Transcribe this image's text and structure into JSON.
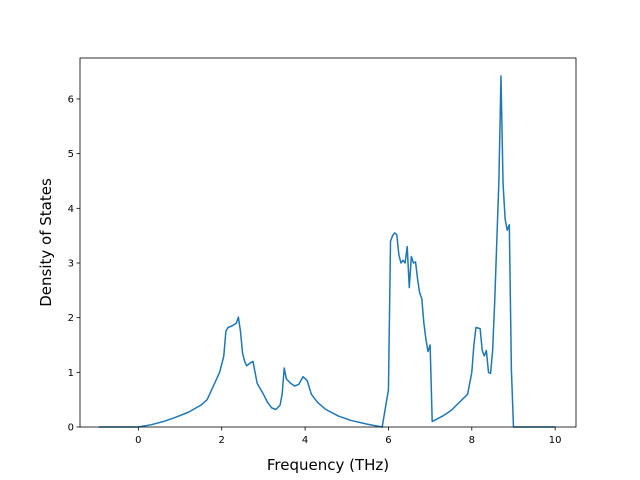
{
  "chart_data": {
    "type": "line",
    "title": "",
    "xlabel": "Frequency (THz)",
    "ylabel": "Density of States",
    "xlim": [
      -1.4,
      10.5
    ],
    "ylim": [
      0,
      6.75
    ],
    "xticks": [
      0,
      2,
      4,
      6,
      8,
      10
    ],
    "yticks": [
      0,
      1,
      2,
      3,
      4,
      5,
      6
    ],
    "grid": false,
    "line_color": "#1f77b4",
    "series": [
      {
        "name": "",
        "x": [
          -0.95,
          0.0,
          0.3,
          0.6,
          0.9,
          1.2,
          1.5,
          1.65,
          1.8,
          1.95,
          2.05,
          2.1,
          2.15,
          2.25,
          2.35,
          2.4,
          2.45,
          2.5,
          2.55,
          2.6,
          2.7,
          2.75,
          2.85,
          3.0,
          3.1,
          3.2,
          3.3,
          3.4,
          3.45,
          3.5,
          3.55,
          3.65,
          3.75,
          3.85,
          3.95,
          4.05,
          4.15,
          4.3,
          4.5,
          4.8,
          5.1,
          5.5,
          5.85,
          6.0,
          6.05,
          6.1,
          6.15,
          6.2,
          6.25,
          6.3,
          6.35,
          6.4,
          6.45,
          6.5,
          6.55,
          6.6,
          6.65,
          6.7,
          6.75,
          6.8,
          6.85,
          6.9,
          6.95,
          7.0,
          7.05,
          7.1,
          7.3,
          7.5,
          7.7,
          7.9,
          8.0,
          8.05,
          8.1,
          8.2,
          8.25,
          8.3,
          8.35,
          8.4,
          8.45,
          8.5,
          8.55,
          8.6,
          8.65,
          8.7,
          8.75,
          8.8,
          8.85,
          8.9,
          8.95,
          9.0,
          9.05,
          9.1,
          10.0
        ],
        "y": [
          0.0,
          0.0,
          0.04,
          0.1,
          0.18,
          0.27,
          0.4,
          0.5,
          0.75,
          1.0,
          1.3,
          1.75,
          1.82,
          1.85,
          1.9,
          2.01,
          1.75,
          1.35,
          1.2,
          1.12,
          1.18,
          1.2,
          0.8,
          0.6,
          0.45,
          0.35,
          0.32,
          0.4,
          0.6,
          1.08,
          0.88,
          0.8,
          0.75,
          0.78,
          0.92,
          0.85,
          0.6,
          0.45,
          0.32,
          0.2,
          0.12,
          0.05,
          0.0,
          0.68,
          3.4,
          3.5,
          3.55,
          3.52,
          3.15,
          3.0,
          3.05,
          3.0,
          3.3,
          2.55,
          3.12,
          3.0,
          3.02,
          2.7,
          2.45,
          2.35,
          1.9,
          1.6,
          1.38,
          1.5,
          0.1,
          0.12,
          0.2,
          0.3,
          0.45,
          0.6,
          1.0,
          1.5,
          1.82,
          1.8,
          1.4,
          1.3,
          1.4,
          1.0,
          0.98,
          1.4,
          2.3,
          3.4,
          4.5,
          6.42,
          4.45,
          3.8,
          3.6,
          3.7,
          1.05,
          0.0,
          0.0,
          0.0,
          0.0
        ]
      }
    ]
  }
}
